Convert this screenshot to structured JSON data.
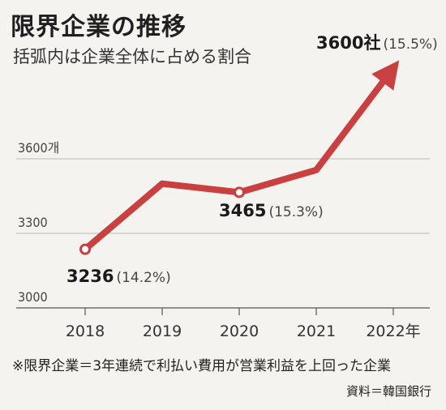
{
  "title": "限界企業の推移",
  "subtitle": "括弧内は企業全体に占める割合",
  "footnote": "※限界企業＝3年連続で利払い費用が営業利益を上回った企業",
  "source": "資料＝韓国銀行",
  "colors": {
    "line": "#c94040",
    "grid": "#b9b9b9",
    "axis": "#555555"
  },
  "chart_data": {
    "type": "line",
    "categories": [
      "2018",
      "2019",
      "2020",
      "2021",
      "2022年"
    ],
    "values": [
      3236,
      3500,
      3465,
      3555,
      3600
    ],
    "ylim": [
      3000,
      3600
    ],
    "yticks": [
      {
        "value": 3000,
        "label": "3000"
      },
      {
        "value": 3300,
        "label": "3300"
      },
      {
        "value": 3600,
        "label": "3600개"
      }
    ],
    "annotations": [
      {
        "index": 0,
        "value": "3236",
        "share": "(14.2%)"
      },
      {
        "index": 2,
        "value": "3465",
        "share": "(15.3%)"
      },
      {
        "index": 4,
        "value": "3600社",
        "share": "(15.5%)"
      }
    ],
    "grid": true,
    "xlabel": "",
    "ylabel": ""
  }
}
